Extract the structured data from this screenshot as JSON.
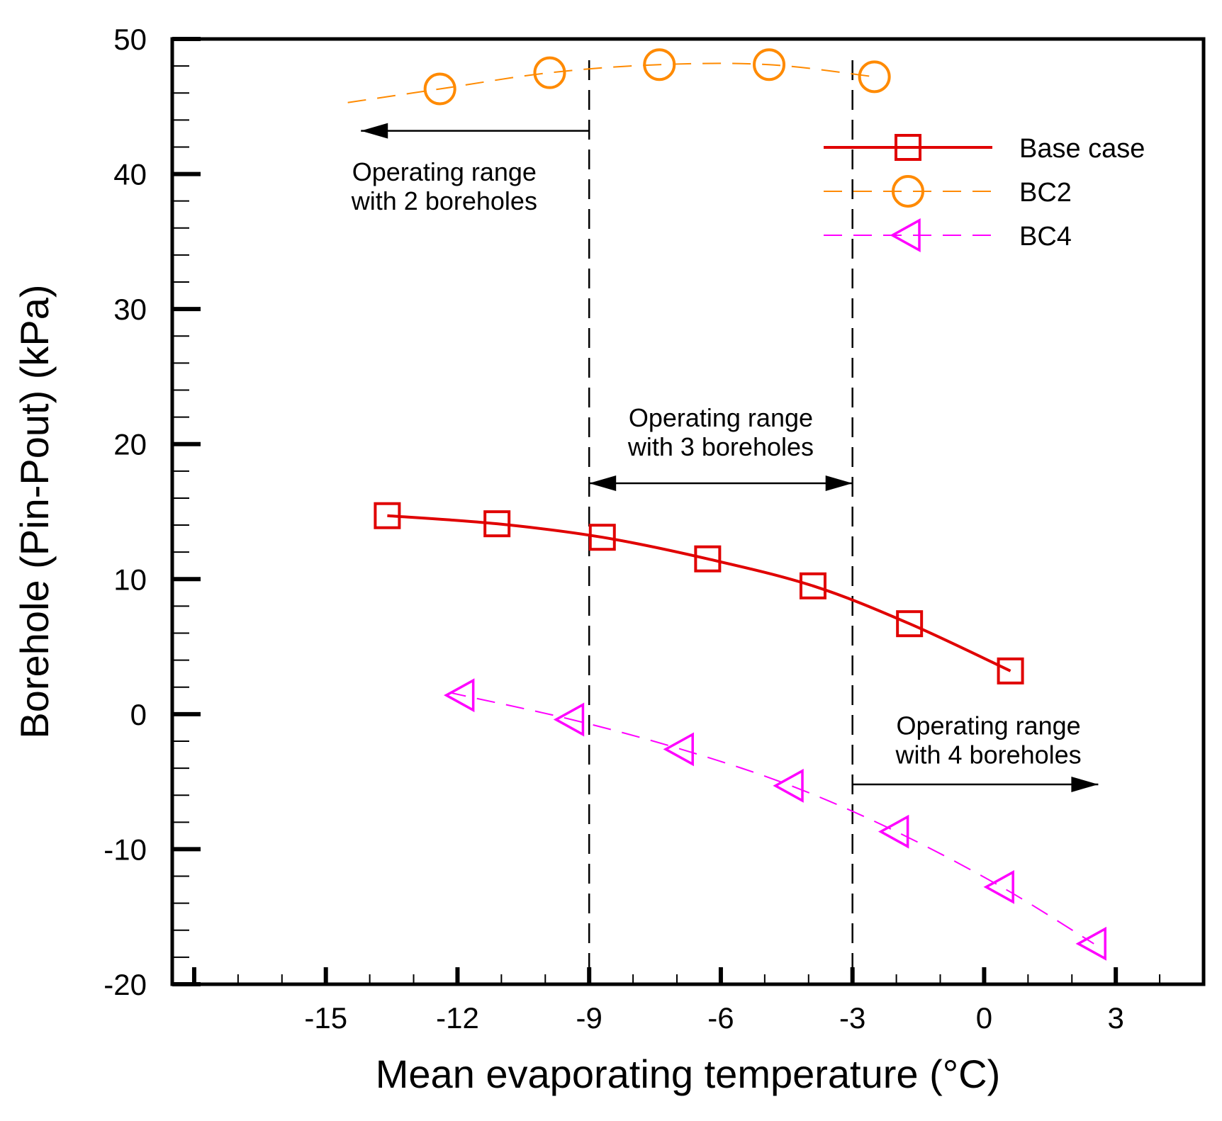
{
  "chart_data": {
    "type": "line",
    "title": "",
    "xlabel": "Mean evaporating temperature (°C)",
    "ylabel": "Borehole (Pin-Pout) (kPa)",
    "xlim": [
      -18.5,
      5
    ],
    "ylim": [
      -20,
      50
    ],
    "xticks": [
      -15,
      -12,
      -9,
      -6,
      -3,
      0,
      3
    ],
    "yticks": [
      -20,
      -10,
      0,
      10,
      20,
      30,
      40,
      50
    ],
    "grid": false,
    "legend_position": "top-right",
    "series": [
      {
        "name": "Base case",
        "color": "#e00000",
        "line_style": "solid",
        "marker": "square",
        "x": [
          -13.6,
          -11.1,
          -8.7,
          -6.3,
          -3.9,
          -1.7,
          0.6
        ],
        "y": [
          14.7,
          14.1,
          13.1,
          11.5,
          9.5,
          6.7,
          3.2
        ],
        "curve_x_start": -13.6
      },
      {
        "name": "BC2",
        "color": "#ff8a00",
        "line_style": "dashed",
        "marker": "circle",
        "x": [
          -12.4,
          -9.9,
          -7.4,
          -4.9,
          -2.5
        ],
        "y": [
          46.3,
          47.5,
          48.1,
          48.1,
          47.2
        ],
        "curve_x_start": -14.5
      },
      {
        "name": "BC4",
        "color": "#ff00ff",
        "line_style": "dashed",
        "marker": "triangle-left",
        "x": [
          -11.9,
          -9.4,
          -6.9,
          -4.4,
          -2.0,
          0.4,
          2.5
        ],
        "y": [
          1.4,
          -0.4,
          -2.6,
          -5.3,
          -8.7,
          -12.8,
          -17.0
        ],
        "curve_x_start": -12.1
      }
    ],
    "annotations": [
      {
        "id": "2bh",
        "lines": [
          "Operating range",
          "with 2 boreholes"
        ],
        "x": -12.3,
        "y": 39.5
      },
      {
        "id": "3bh",
        "lines": [
          "Operating range",
          "with 3 boreholes"
        ],
        "x": -6.0,
        "y": 21.3
      },
      {
        "id": "4bh",
        "lines": [
          "Operating range",
          "with 4 boreholes"
        ],
        "x": 0.1,
        "y": -1.5
      }
    ],
    "vertical_lines": [
      -9.0,
      -3.0
    ],
    "range_arrows": [
      {
        "from": -9.0,
        "to": -14.2,
        "y": 43.2
      },
      {
        "from": -9.0,
        "to": -3.0,
        "y": 17.1
      },
      {
        "from": -3.0,
        "to": 2.6,
        "y": -5.2
      }
    ]
  }
}
